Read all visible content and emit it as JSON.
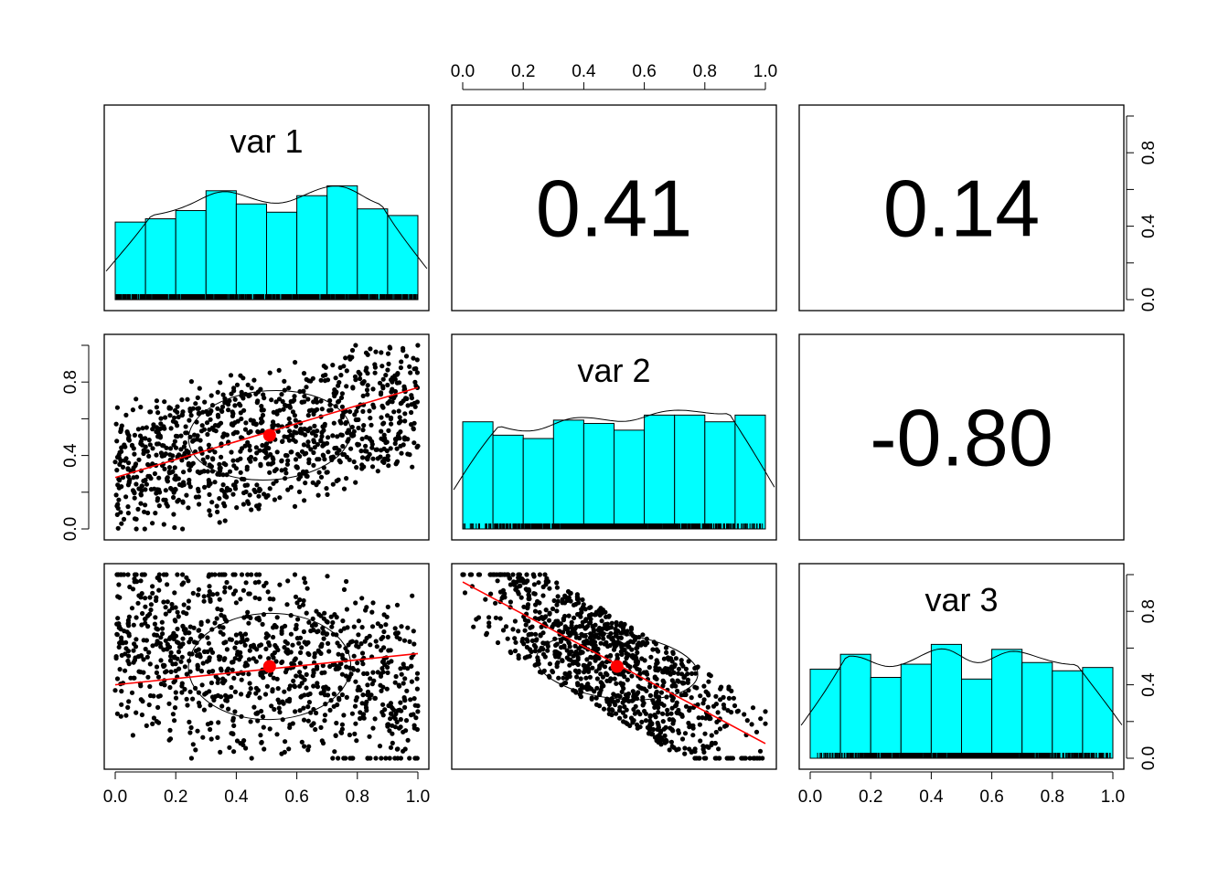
{
  "chart_data": {
    "type": "scatter-matrix",
    "title": "",
    "variables": [
      "var 1",
      "var 2",
      "var 3"
    ],
    "axis_ticks": [
      "0.0",
      "0.2",
      "0.4",
      "0.6",
      "0.8",
      "1.0"
    ],
    "axis_range": [
      0,
      1
    ],
    "histogram_fill": "#00ffff",
    "regression_color": "#ff0000",
    "histograms": [
      {
        "variable": "var 1",
        "bin_width": 0.1,
        "counts": [
          47,
          49,
          54,
          66,
          58,
          53,
          63,
          69,
          55,
          51
        ]
      },
      {
        "variable": "var 2",
        "bin_width": 0.1,
        "counts": [
          64,
          56,
          54,
          65,
          63,
          59,
          68,
          68,
          64,
          68
        ]
      },
      {
        "variable": "var 3",
        "bin_width": 0.1,
        "counts": [
          54,
          63,
          49,
          57,
          69,
          48,
          66,
          58,
          53,
          55
        ]
      }
    ],
    "correlations": [
      {
        "pair": [
          "var 1",
          "var 2"
        ],
        "label": "0.41",
        "value": 0.41
      },
      {
        "pair": [
          "var 1",
          "var 3"
        ],
        "label": "0.14",
        "value": 0.14
      },
      {
        "pair": [
          "var 2",
          "var 3"
        ],
        "label": "-0.80",
        "value": -0.8
      }
    ],
    "scatter_panels": [
      {
        "x": "var 1",
        "y": "var 2",
        "mean": [
          0.51,
          0.51
        ],
        "fit_line": [
          [
            0.0,
            0.28
          ],
          [
            1.0,
            0.77
          ]
        ]
      },
      {
        "x": "var 1",
        "y": "var 3",
        "mean": [
          0.51,
          0.5
        ],
        "fit_line": [
          [
            0.0,
            0.4
          ],
          [
            1.0,
            0.57
          ]
        ]
      },
      {
        "x": "var 2",
        "y": "var 3",
        "mean": [
          0.51,
          0.5
        ],
        "fit_line": [
          [
            0.0,
            0.96
          ],
          [
            1.0,
            0.08
          ]
        ]
      }
    ],
    "n_points": 1000
  }
}
